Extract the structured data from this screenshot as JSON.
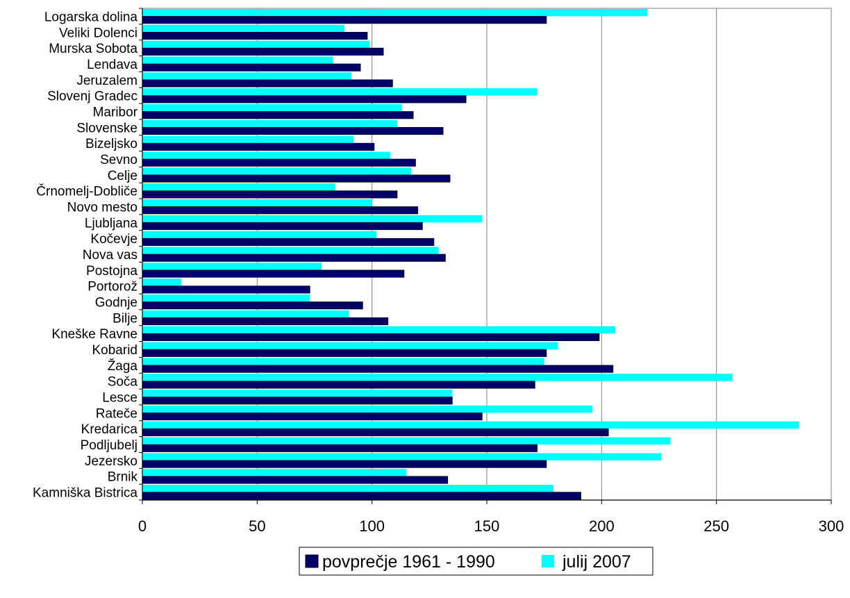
{
  "chart_data": {
    "type": "bar",
    "orientation": "horizontal",
    "categories": [
      "Logarska dolina",
      "Veliki Dolenci",
      "Murska Sobota",
      "Lendava",
      "Jeruzalem",
      "Slovenj Gradec",
      "Maribor",
      "Slovenske",
      "Bizeljsko",
      "Sevno",
      "Celje",
      "Črnomelj-Dobliče",
      "Novo mesto",
      "Ljubljana",
      "Kočevje",
      "Nova vas",
      "Postojna",
      "Portorož",
      "Godnje",
      "Bilje",
      "Kneške Ravne",
      "Kobarid",
      "Žaga",
      "Soča",
      "Lesce",
      "Rateče",
      "Kredarica",
      "Podljubelj",
      "Jezersko",
      "Brnik",
      "Kamniška Bistrica"
    ],
    "series": [
      {
        "name": "povprečje 1961 - 1990",
        "color": "#000066",
        "values": [
          176,
          98,
          105,
          95,
          109,
          141,
          118,
          131,
          101,
          119,
          134,
          111,
          120,
          122,
          127,
          132,
          114,
          73,
          96,
          107,
          199,
          176,
          205,
          171,
          135,
          148,
          203,
          172,
          176,
          133,
          191
        ]
      },
      {
        "name": "julij 2007",
        "color": "#00FFFF",
        "values": [
          220,
          88,
          99,
          83,
          91,
          172,
          113,
          111,
          92,
          108,
          117,
          84,
          100,
          148,
          102,
          129,
          78,
          17,
          73,
          90,
          206,
          181,
          175,
          257,
          135,
          196,
          286,
          230,
          226,
          115,
          179
        ]
      }
    ],
    "x_ticks": [
      "0",
      "50",
      "100",
      "150",
      "200",
      "250",
      "300"
    ],
    "xlim": [
      0,
      300
    ],
    "grid": "vertical",
    "legend": "bottom"
  }
}
